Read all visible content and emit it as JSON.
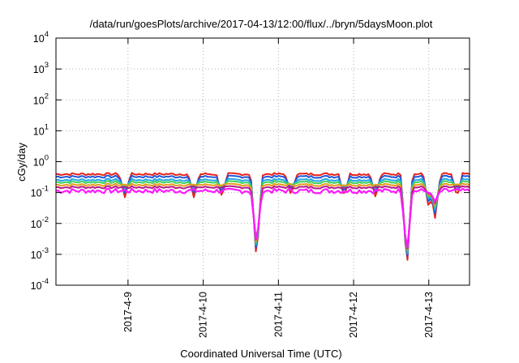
{
  "chart_data": {
    "type": "line",
    "title": "/data/run/goesPlots/archive/2017-04-13/12:00/flux/../bryn/5daysMoon.plot",
    "xlabel": "Coordinated Universal Time (UTC)",
    "ylabel": "cGy/day",
    "xlim": [
      "2017-04-08 01:00",
      "2017-04-13 13:00"
    ],
    "ylim": [
      0.0001,
      10000
    ],
    "y_scale": "log",
    "grid": true,
    "y_ticks": [
      {
        "value": 0.0001,
        "base": "10",
        "exp": "-4"
      },
      {
        "value": 0.001,
        "base": "10",
        "exp": "-3"
      },
      {
        "value": 0.01,
        "base": "10",
        "exp": "-2"
      },
      {
        "value": 0.1,
        "base": "10",
        "exp": "-1"
      },
      {
        "value": 1,
        "base": "10",
        "exp": "0"
      },
      {
        "value": 10,
        "base": "10",
        "exp": "1"
      },
      {
        "value": 100,
        "base": "10",
        "exp": "2"
      },
      {
        "value": 1000,
        "base": "10",
        "exp": "3"
      },
      {
        "value": 10000,
        "base": "10",
        "exp": "4"
      }
    ],
    "x_ticks": [
      {
        "value": "2017-04-09",
        "label": "2017-4-9"
      },
      {
        "value": "2017-04-10",
        "label": "2017-4-10"
      },
      {
        "value": "2017-04-11",
        "label": "2017-4-11"
      },
      {
        "value": "2017-04-12",
        "label": "2017-4-12"
      },
      {
        "value": "2017-04-13",
        "label": "2017-4-13"
      }
    ],
    "series_colors": [
      "#e8231b",
      "#2358d8",
      "#23a6e6",
      "#3fd15a",
      "#e69a1b",
      "#b51a8c",
      "#ff19ff"
    ],
    "series": [
      {
        "color": "#e8231b",
        "baseline": 0.4
      },
      {
        "color": "#2358d8",
        "baseline": 0.33
      },
      {
        "color": "#23a6e6",
        "baseline": 0.26
      },
      {
        "color": "#3fd15a",
        "baseline": 0.22
      },
      {
        "color": "#e69a1b",
        "baseline": 0.18
      },
      {
        "color": "#b51a8c",
        "baseline": 0.15
      },
      {
        "color": "#ff19ff",
        "baseline": 0.12
      }
    ],
    "dips": [
      {
        "x": "2017-04-08 23:00",
        "min": 0.07
      },
      {
        "x": "2017-04-09 21:00",
        "min": 0.07
      },
      {
        "x": "2017-04-10 06:00",
        "min": 0.07
      },
      {
        "x": "2017-04-10 17:00",
        "min": 0.0006
      },
      {
        "x": "2017-04-11 04:00",
        "min": 0.08
      },
      {
        "x": "2017-04-11 21:00",
        "min": 0.07
      },
      {
        "x": "2017-04-12 07:00",
        "min": 0.07
      },
      {
        "x": "2017-04-12 17:00",
        "min": 0.0003
      },
      {
        "x": "2017-04-13 00:00",
        "min": 0.03
      },
      {
        "x": "2017-04-13 02:00",
        "min": 0.015
      },
      {
        "x": "2017-04-13 09:00",
        "min": 0.07
      }
    ]
  }
}
